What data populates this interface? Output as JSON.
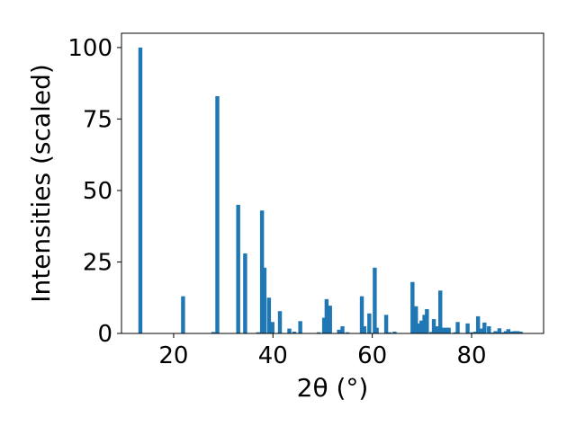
{
  "chart_data": {
    "type": "bar",
    "title": "",
    "xlabel": "2θ (°)",
    "ylabel": "Intensities (scaled)",
    "xlim": [
      9.5,
      94.5
    ],
    "ylim": [
      0,
      105
    ],
    "xticks": [
      20,
      40,
      60,
      80
    ],
    "yticks": [
      0,
      25,
      50,
      75,
      100
    ],
    "xtick_labels": [
      "20",
      "40",
      "60",
      "80"
    ],
    "ytick_labels": [
      "0",
      "25",
      "50",
      "75",
      "100"
    ],
    "grid": false,
    "legend": "none",
    "bar_color": "#1f77b4",
    "bar_width": 0.8,
    "x": [
      13.3,
      21.9,
      28.0,
      28.8,
      33.0,
      34.4,
      37.0,
      37.8,
      38.3,
      39.2,
      39.9,
      41.4,
      43.3,
      44.3,
      45.5,
      49.2,
      50.3,
      50.8,
      51.5,
      53.3,
      54.0,
      55.0,
      57.9,
      58.4,
      59.4,
      60.5,
      60.9,
      62.8,
      63.5,
      64.5,
      68.1,
      68.8,
      69.3,
      69.9,
      70.5,
      71.0,
      71.9,
      72.4,
      73.1,
      73.7,
      74.2,
      74.9,
      75.4,
      76.7,
      77.2,
      79.2,
      80.1,
      80.8,
      81.3,
      82.0,
      82.6,
      83.5,
      84.3,
      84.8,
      85.6,
      86.3,
      86.9,
      87.4,
      88.1,
      88.7,
      89.3,
      89.9
    ],
    "values": [
      100,
      13,
      0.5,
      83,
      45,
      28,
      0.4,
      43,
      23,
      12.5,
      4,
      7.8,
      1.7,
      0.6,
      4.3,
      0.4,
      5.5,
      12,
      9.7,
      1.3,
      2.5,
      0.4,
      13,
      2.5,
      7,
      23,
      2,
      6.5,
      0.4,
      0.6,
      18,
      9.5,
      3.5,
      4.5,
      6.5,
      8.5,
      0.5,
      5,
      2.5,
      15,
      2,
      2,
      2,
      0.4,
      4,
      3.5,
      0.4,
      0.6,
      6,
      1.7,
      3.8,
      2.5,
      0.3,
      0.8,
      1.8,
      0.4,
      0.8,
      1.5,
      0.7,
      0.8,
      0.8,
      0.6
    ]
  }
}
